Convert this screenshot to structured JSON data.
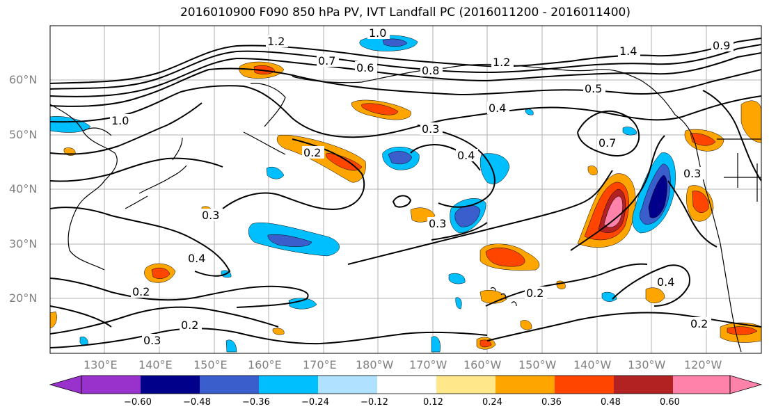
{
  "title": "2016010900 F090 850 hPa PV, IVT Landfall PC (2016011200 - 2016011400)",
  "lat_labels": [
    "60°N",
    "50°N",
    "40°N",
    "30°N",
    "20°N"
  ],
  "lon_labels": [
    "130°E",
    "140°E",
    "150°E",
    "160°E",
    "170°E",
    "180°W",
    "170°W",
    "160°W",
    "150°W",
    "140°W",
    "130°W",
    "120°W"
  ],
  "contour_labels": [
    "1.0",
    "1.2",
    "0.7",
    "0.6",
    "0.8",
    "1.2",
    "1.4",
    "0.9",
    "0.5",
    "0.4",
    "1.0",
    "0.3",
    "0.2",
    "0.4",
    "0.7",
    "0.3",
    "0.3",
    "0.3",
    "0.4",
    "0.2",
    "0.2",
    "0.3",
    "0.2",
    "0.4",
    "0.2"
  ],
  "colorbar": {
    "ticks": [
      "−0.60",
      "−0.48",
      "−0.36",
      "−0.24",
      "−0.12",
      "0.12",
      "0.24",
      "0.36",
      "0.48",
      "0.60"
    ],
    "colors": [
      "#9932cc",
      "#00008b",
      "#3a5fcd",
      "#00bfff",
      "#b0e2ff",
      "#ffffff",
      "#ffe78a",
      "#ffa500",
      "#ff4500",
      "#b22222",
      "#ff82ab"
    ]
  }
}
